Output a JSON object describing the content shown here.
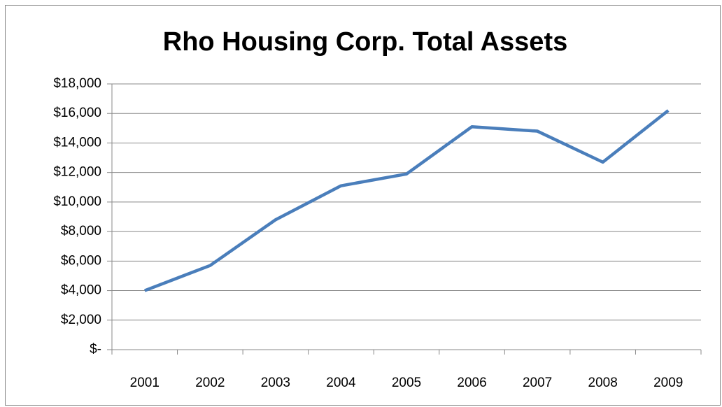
{
  "chart_data": {
    "type": "line",
    "title": "Rho Housing Corp. Total Assets",
    "categories": [
      "2001",
      "2002",
      "2003",
      "2004",
      "2005",
      "2006",
      "2007",
      "2008",
      "2009"
    ],
    "series": [
      {
        "name": "Total Assets",
        "color": "#4a7ebb",
        "values": [
          4000,
          5700,
          8800,
          11100,
          11900,
          15100,
          14800,
          12700,
          16200
        ]
      }
    ],
    "ylim": [
      0,
      18000
    ],
    "yticks": [
      {
        "value": 0,
        "label": "$-"
      },
      {
        "value": 2000,
        "label": "$2,000"
      },
      {
        "value": 4000,
        "label": "$4,000"
      },
      {
        "value": 6000,
        "label": "$6,000"
      },
      {
        "value": 8000,
        "label": "$8,000"
      },
      {
        "value": 10000,
        "label": "$10,000"
      },
      {
        "value": 12000,
        "label": "$12,000"
      },
      {
        "value": 14000,
        "label": "$14,000"
      },
      {
        "value": 16000,
        "label": "$16,000"
      },
      {
        "value": 18000,
        "label": "$18,000"
      }
    ],
    "grid": true
  }
}
